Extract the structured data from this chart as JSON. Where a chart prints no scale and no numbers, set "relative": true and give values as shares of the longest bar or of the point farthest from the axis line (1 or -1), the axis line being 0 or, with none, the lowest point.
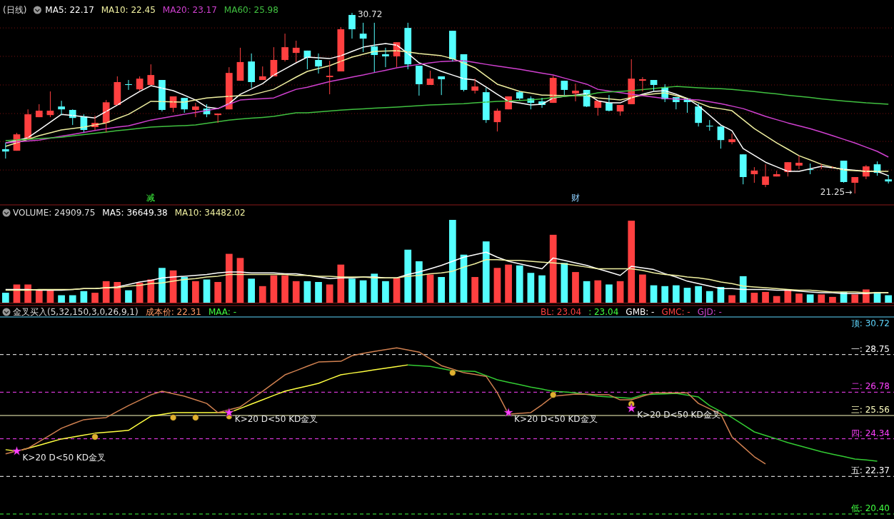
{
  "chart_data": [
    {
      "type": "candlestick",
      "title": "(日线)",
      "legend": "top left",
      "tick_labels": "x",
      "grid": "y",
      "yticks": [
        {
          "value": 29.93,
          "label": null
        },
        {
          "value": 28.44,
          "label": null
        },
        {
          "value": 26.94,
          "label": null
        },
        {
          "value": 25.44,
          "label": null
        },
        {
          "value": 23.98,
          "label": null
        },
        {
          "value": 22.48,
          "label": null
        }
      ],
      "categories": [
        null,
        null,
        null,
        null,
        null,
        null,
        null,
        null,
        null,
        null,
        null,
        null,
        null,
        "减",
        null,
        null,
        null,
        null,
        null,
        null,
        null,
        null,
        null,
        null,
        null,
        null,
        null,
        null,
        null,
        null,
        null,
        null,
        null,
        null,
        null,
        null,
        null,
        null,
        null,
        null,
        null,
        null,
        null,
        null,
        null,
        null,
        null,
        null,
        null,
        null,
        null,
        "财",
        null,
        null,
        null,
        null,
        null,
        null,
        null,
        null,
        null,
        null,
        null,
        null,
        null,
        null,
        null,
        null,
        null,
        null,
        null,
        null,
        null,
        null,
        null,
        null,
        null,
        null,
        null,
        null
      ],
      "ohlc": [
        [
          23.57,
          23.9,
          23.08,
          23.45
        ],
        [
          23.49,
          24.43,
          23.49,
          24.35
        ],
        [
          24.09,
          25.66,
          24.09,
          25.4
        ],
        [
          25.25,
          25.93,
          25.25,
          25.59
        ],
        [
          25.36,
          26.6,
          25.25,
          25.59
        ],
        [
          25.81,
          26.11,
          25.36,
          25.66
        ],
        [
          25.63,
          25.66,
          24.84,
          25.21
        ],
        [
          25.29,
          25.4,
          24.46,
          24.58
        ],
        [
          24.73,
          25.33,
          24.58,
          24.95
        ],
        [
          24.95,
          26.15,
          24.46,
          26.03
        ],
        [
          25.89,
          27.39,
          25.89,
          27.09
        ],
        [
          26.98,
          27.2,
          26.68,
          26.94
        ],
        [
          26.71,
          27.39,
          26.64,
          27.27
        ],
        [
          26.94,
          28.02,
          26.94,
          27.46
        ],
        [
          27.2,
          27.2,
          25.55,
          25.63
        ],
        [
          25.74,
          26.34,
          25.51,
          26.34
        ],
        [
          26.26,
          26.26,
          25.48,
          25.66
        ],
        [
          25.63,
          26.0,
          25.25,
          25.81
        ],
        [
          25.7,
          25.93,
          25.25,
          25.4
        ],
        [
          25.36,
          25.44,
          24.95,
          25.44
        ],
        [
          25.66,
          27.87,
          25.66,
          27.57
        ],
        [
          27.16,
          28.89,
          27.16,
          28.14
        ],
        [
          28.17,
          28.59,
          26.79,
          27.09
        ],
        [
          27.2,
          27.91,
          27.2,
          27.39
        ],
        [
          27.39,
          28.92,
          27.39,
          28.25
        ],
        [
          28.25,
          29.63,
          28.17,
          28.92
        ],
        [
          28.62,
          29.26,
          28.14,
          28.89
        ],
        [
          28.74,
          28.74,
          27.76,
          28.36
        ],
        [
          28.25,
          28.59,
          27.54,
          27.91
        ],
        [
          27.35,
          28.21,
          26.45,
          27.42
        ],
        [
          27.65,
          29.97,
          27.65,
          29.86
        ],
        [
          30.61,
          30.72,
          29.37,
          29.86
        ],
        [
          29.63,
          30.2,
          28.66,
          29.37
        ],
        [
          28.96,
          30.2,
          27.61,
          28.51
        ],
        [
          28.55,
          28.89,
          27.87,
          28.44
        ],
        [
          28.44,
          29.18,
          27.87,
          29.18
        ],
        [
          29.93,
          30.2,
          27.76,
          28.02
        ],
        [
          27.95,
          27.95,
          26.38,
          26.98
        ],
        [
          26.94,
          27.69,
          26.94,
          27.27
        ],
        [
          27.39,
          27.39,
          26.41,
          27.24
        ],
        [
          29.78,
          29.78,
          28.17,
          28.29
        ],
        [
          28.55,
          28.55,
          26.6,
          26.68
        ],
        [
          26.64,
          27.27,
          26.49,
          26.86
        ],
        [
          26.56,
          26.79,
          24.95,
          25.1
        ],
        [
          24.99,
          25.7,
          24.5,
          25.59
        ],
        [
          25.66,
          26.34,
          25.66,
          26.34
        ],
        [
          26.56,
          26.64,
          26.15,
          26.23
        ],
        [
          26.23,
          26.34,
          25.66,
          26.0
        ],
        [
          26.08,
          26.26,
          25.74,
          25.89
        ],
        [
          26.0,
          27.42,
          26.0,
          27.31
        ],
        [
          27.16,
          27.16,
          26.41,
          26.68
        ],
        [
          26.49,
          27.01,
          26.08,
          26.64
        ],
        [
          26.68,
          26.68,
          25.78,
          25.81
        ],
        [
          25.74,
          26.11,
          25.33,
          26.11
        ],
        [
          26.0,
          26.41,
          25.55,
          25.59
        ],
        [
          25.55,
          25.89,
          25.33,
          25.89
        ],
        [
          25.93,
          28.29,
          25.93,
          27.27
        ],
        [
          27.16,
          27.35,
          26.6,
          27.24
        ],
        [
          27.2,
          27.2,
          26.64,
          26.94
        ],
        [
          26.83,
          26.98,
          26.04,
          26.19
        ],
        [
          26.3,
          26.3,
          25.66,
          26.04
        ],
        [
          26.23,
          26.23,
          25.48,
          26.04
        ],
        [
          25.81,
          25.96,
          24.76,
          24.95
        ],
        [
          24.8,
          25.1,
          24.54,
          24.76
        ],
        [
          24.76,
          24.8,
          23.6,
          24.05
        ],
        [
          23.94,
          24.39,
          23.83,
          24.09
        ],
        [
          23.3,
          23.3,
          21.73,
          22.11
        ],
        [
          22.26,
          22.63,
          21.81,
          22.45
        ],
        [
          21.7,
          22.78,
          21.58,
          22.14
        ],
        [
          22.14,
          22.44,
          22.14,
          22.26
        ],
        [
          22.37,
          22.89,
          22.14,
          22.89
        ],
        [
          22.71,
          23.23,
          22.52,
          22.86
        ],
        [
          22.52,
          22.82,
          22.26,
          22.48
        ],
        [
          22.63,
          22.78,
          22.52,
          22.67
        ],
        [
          22.6,
          22.67,
          22.56,
          22.63
        ],
        [
          22.97,
          22.97,
          21.81,
          21.85
        ],
        [
          21.81,
          22.11,
          21.25,
          22.11
        ],
        [
          22.14,
          22.74,
          22.0,
          22.67
        ],
        [
          22.78,
          22.93,
          22.18,
          22.33
        ],
        [
          21.99,
          22.22,
          21.77,
          21.88
        ]
      ],
      "series": [
        {
          "name": "MA5: 22.17",
          "color": "#ffffff",
          "type": "line",
          "values": [
            23.9,
            24.03,
            24.17,
            24.58,
            24.99,
            25.4,
            25.34,
            25.27,
            25.21,
            25.55,
            25.89,
            26.25,
            26.6,
            26.9,
            26.77,
            26.64,
            26.4,
            26.15,
            25.78,
            25.7,
            25.96,
            26.45,
            26.73,
            27.01,
            27.46,
            27.78,
            28.1,
            28.4,
            28.36,
            28.32,
            28.47,
            28.7,
            28.92,
            29.03,
            29.11,
            29.03,
            28.59,
            28.1,
            27.88,
            27.65,
            27.46,
            27.27,
            27.2,
            26.83,
            26.45,
            26.08,
            25.99,
            25.89,
            25.93,
            26.26,
            26.34,
            26.41,
            26.49,
            26.11,
            26.0,
            26.0,
            26.26,
            26.45,
            26.6,
            26.64,
            26.45,
            26.23,
            25.85,
            25.35,
            24.84,
            24.54,
            23.6,
            23.25,
            22.89,
            22.65,
            22.41,
            22.41,
            22.54,
            22.67,
            22.6,
            22.52,
            22.47,
            22.41,
            22.41,
            22.18
          ]
        },
        {
          "name": "MA10: 22.45",
          "color": "#f0f0a0",
          "type": "line",
          "values": [
            23.72,
            23.91,
            24.09,
            24.28,
            24.43,
            24.58,
            24.66,
            24.73,
            24.84,
            24.95,
            25.18,
            25.4,
            25.74,
            26.08,
            26.07,
            26.05,
            26.04,
            26.15,
            26.26,
            26.3,
            26.34,
            26.38,
            26.41,
            26.56,
            26.71,
            27.03,
            27.35,
            27.65,
            27.8,
            27.95,
            28.18,
            28.4,
            28.55,
            28.7,
            28.72,
            28.74,
            28.67,
            28.59,
            28.53,
            28.47,
            28.32,
            28.08,
            27.84,
            27.41,
            26.98,
            26.79,
            26.6,
            26.51,
            26.41,
            26.4,
            26.38,
            26.38,
            26.38,
            26.26,
            26.21,
            26.15,
            26.28,
            26.41,
            26.47,
            26.53,
            26.38,
            26.23,
            26.01,
            25.78,
            25.69,
            25.59,
            25.12,
            24.65,
            24.28,
            23.9,
            23.57,
            23.23,
            23.01,
            22.78,
            22.63,
            22.48,
            22.45,
            22.41,
            22.41,
            22.41
          ]
        },
        {
          "name": "MA20: 23.17",
          "color": "#d040d0",
          "type": "line",
          "values": [
            23.9,
            23.95,
            24.0,
            24.05,
            24.15,
            24.25,
            24.35,
            24.45,
            24.55,
            24.65,
            24.73,
            24.8,
            24.95,
            25.1,
            25.2,
            25.3,
            25.4,
            25.5,
            25.6,
            25.7,
            25.93,
            26.15,
            26.19,
            26.22,
            26.26,
            26.49,
            26.71,
            26.82,
            26.97,
            27.12,
            27.23,
            27.35,
            27.46,
            27.59,
            27.71,
            27.84,
            27.93,
            28.02,
            28.1,
            28.17,
            28.19,
            28.21,
            28.12,
            28.02,
            27.93,
            27.85,
            27.76,
            27.66,
            27.56,
            27.46,
            27.3,
            27.14,
            26.98,
            26.71,
            26.62,
            26.54,
            26.45,
            26.38,
            26.3,
            26.23,
            26.2,
            26.18,
            26.15,
            26.06,
            25.96,
            25.83,
            25.7,
            25.5,
            25.29,
            25.12,
            24.95,
            24.8,
            24.65,
            24.47,
            24.28,
            24.09,
            23.9,
            23.68,
            23.46,
            23.16
          ]
        },
        {
          "name": "MA60: 25.98",
          "color": "#40c040",
          "type": "line",
          "values": [
            24.02,
            24.06,
            24.09,
            24.13,
            24.16,
            24.2,
            24.27,
            24.34,
            24.4,
            24.47,
            24.54,
            24.6,
            24.67,
            24.73,
            24.76,
            24.79,
            24.81,
            24.84,
            24.93,
            25.01,
            25.1,
            25.15,
            25.2,
            25.24,
            25.29,
            25.39,
            25.48,
            25.48,
            25.53,
            25.57,
            25.62,
            25.66,
            25.69,
            25.72,
            25.75,
            25.78,
            25.82,
            25.85,
            25.89,
            25.91,
            25.94,
            25.96,
            26.0,
            26.04,
            26.08,
            26.1,
            26.13,
            26.15,
            26.21,
            26.28,
            26.34,
            26.38,
            26.41,
            26.53,
            26.57,
            26.6,
            26.64,
            26.7,
            26.75,
            26.81,
            26.86,
            26.83,
            26.79,
            26.76,
            26.74,
            26.71,
            26.65,
            26.59,
            26.53,
            26.47,
            26.4,
            26.34,
            26.28,
            26.21,
            26.15,
            26.1,
            26.05,
            26.0,
            25.97,
            25.93
          ]
        }
      ],
      "annotations": [
        "30.72",
        "21.25→"
      ]
    },
    {
      "type": "bar",
      "title": "VOLUME: 24909.75",
      "relative": true,
      "legend": "top left",
      "categories": [
        null,
        null,
        null,
        null,
        null,
        null,
        null,
        null,
        null,
        null,
        null,
        null,
        null,
        null,
        null,
        null,
        null,
        null,
        null,
        null,
        null,
        null,
        null,
        null,
        null,
        null,
        null,
        null,
        null,
        null,
        null,
        null,
        null,
        null,
        null,
        null,
        null,
        null,
        null,
        null,
        null,
        null,
        null,
        null,
        null,
        null,
        null,
        null,
        null,
        null,
        null,
        null,
        null,
        null,
        null,
        null,
        null,
        null,
        null,
        null,
        null,
        null,
        null,
        null,
        null,
        null,
        null,
        null,
        null,
        null,
        null,
        null,
        null,
        null,
        null,
        null,
        null,
        null,
        null,
        null
      ],
      "series": [
        {
          "type": "bar",
          "values": [
            0.12,
            0.22,
            0.22,
            0.16,
            0.16,
            0.09,
            0.09,
            0.14,
            0.12,
            0.26,
            0.25,
            0.15,
            0.24,
            0.28,
            0.42,
            0.39,
            0.31,
            0.26,
            0.28,
            0.25,
            0.59,
            0.54,
            0.29,
            0.2,
            0.33,
            0.33,
            0.26,
            0.26,
            0.25,
            0.22,
            0.46,
            0.29,
            0.27,
            0.35,
            0.26,
            0.3,
            0.64,
            0.5,
            0.34,
            0.31,
            1,
            0.58,
            0.31,
            0.74,
            0.42,
            0.46,
            0.45,
            0.36,
            0.33,
            0.82,
            0.48,
            0.37,
            0.26,
            0.27,
            0.22,
            0.26,
            0.99,
            0.34,
            0.21,
            0.2,
            0.21,
            0.18,
            0.2,
            0.14,
            0.19,
            0.09,
            0.32,
            0.12,
            0.13,
            0.08,
            0.16,
            0.11,
            0.1,
            0.1,
            0.07,
            0.13,
            0.1,
            0.16,
            0.13,
            0.09
          ],
          "colors": [
            "#54ffff",
            "#ff4040",
            "#ff4040",
            "#ff4040",
            "#ff4040",
            "#54ffff",
            "#54ffff",
            "#54ffff",
            "#ff4040",
            "#ff4040",
            "#ff4040",
            "#54ffff",
            "#ff4040",
            "#ff4040",
            "#54ffff",
            "#ff4040",
            "#54ffff",
            "#ff4040",
            "#54ffff",
            "#ff4040",
            "#ff4040",
            "#ff4040",
            "#54ffff",
            "#ff4040",
            "#ff4040",
            "#ff4040",
            "#ff4040",
            "#54ffff",
            "#54ffff",
            "#ff4040",
            "#ff4040",
            "#54ffff",
            "#54ffff",
            "#54ffff",
            "#54ffff",
            "#ff4040",
            "#54ffff",
            "#54ffff",
            "#ff4040",
            "#54ffff",
            "#54ffff",
            "#54ffff",
            "#ff4040",
            "#54ffff",
            "#ff4040",
            "#ff4040",
            "#54ffff",
            "#54ffff",
            "#54ffff",
            "#ff4040",
            "#54ffff",
            "#ff4040",
            "#54ffff",
            "#ff4040",
            "#54ffff",
            "#ff4040",
            "#ff4040",
            "#ff4040",
            "#54ffff",
            "#54ffff",
            "#54ffff",
            "#54ffff",
            "#54ffff",
            "#54ffff",
            "#54ffff",
            "#ff4040",
            "#54ffff",
            "#ff4040",
            "#ff4040",
            "#ff4040",
            "#ff4040",
            "#ff4040",
            "#54ffff",
            "#ff4040",
            "#ff4040",
            "#54ffff",
            "#ff4040",
            "#ff4040",
            "#54ffff",
            "#54ffff"
          ]
        },
        {
          "name": "MA5: 36649.38",
          "color": "#ffffff",
          "type": "line",
          "values": [
            0.16,
            0.16,
            0.16,
            0.15,
            0.15,
            0.15,
            0.16,
            0.17,
            0.17,
            0.18,
            0.19,
            0.22,
            0.25,
            0.27,
            0.3,
            0.31,
            0.32,
            0.33,
            0.34,
            0.36,
            0.37,
            0.37,
            0.36,
            0.36,
            0.36,
            0.35,
            0.35,
            0.33,
            0.31,
            0.29,
            0.3,
            0.3,
            0.31,
            0.31,
            0.3,
            0.3,
            0.34,
            0.37,
            0.41,
            0.45,
            0.5,
            0.55,
            0.58,
            0.61,
            0.55,
            0.5,
            0.47,
            0.44,
            0.41,
            0.54,
            0.51,
            0.48,
            0.45,
            0.41,
            0.37,
            0.33,
            0.44,
            0.42,
            0.4,
            0.35,
            0.31,
            0.26,
            0.23,
            0.2,
            0.17,
            0.17,
            0.16,
            0.16,
            0.16,
            0.15,
            0.15,
            0.14,
            0.13,
            0.12,
            0.12,
            0.11,
            0.11,
            0.11,
            0.12,
            0.12
          ]
        },
        {
          "name": "MA10: 34482.02",
          "color": "#f0f0a0",
          "type": "line",
          "values": [
            0.15,
            0.15,
            0.15,
            0.16,
            0.16,
            0.16,
            0.16,
            0.17,
            0.17,
            0.18,
            0.18,
            0.2,
            0.21,
            0.23,
            0.24,
            0.26,
            0.28,
            0.29,
            0.31,
            0.32,
            0.34,
            0.34,
            0.34,
            0.34,
            0.34,
            0.34,
            0.33,
            0.33,
            0.32,
            0.32,
            0.31,
            0.31,
            0.31,
            0.3,
            0.3,
            0.3,
            0.32,
            0.33,
            0.35,
            0.36,
            0.38,
            0.43,
            0.47,
            0.52,
            0.52,
            0.51,
            0.51,
            0.5,
            0.49,
            0.48,
            0.47,
            0.45,
            0.43,
            0.41,
            0.41,
            0.41,
            0.41,
            0.39,
            0.36,
            0.34,
            0.33,
            0.31,
            0.3,
            0.28,
            0.25,
            0.23,
            0.2,
            0.19,
            0.18,
            0.17,
            0.16,
            0.15,
            0.15,
            0.14,
            0.13,
            0.13,
            0.13,
            0.12,
            0.12,
            0.12
          ]
        }
      ]
    },
    {
      "type": "line",
      "title": "金叉买入(5,32,150,3,0,26,9,1)",
      "ylim": [
        20.4,
        30.72
      ],
      "categories": [
        null,
        null,
        null,
        null,
        null,
        null,
        null,
        null,
        null,
        null,
        null,
        null,
        null,
        null,
        null,
        null,
        null,
        null,
        null,
        null,
        null,
        null,
        null,
        null,
        null,
        null,
        null,
        null,
        null,
        null,
        null,
        null,
        null,
        null,
        null,
        null,
        null,
        null,
        null,
        null,
        null,
        null,
        null,
        null,
        null,
        null,
        null,
        null,
        null,
        null,
        null,
        null,
        null,
        null,
        null,
        null,
        null,
        null,
        null,
        null,
        null,
        null,
        null,
        null,
        null,
        null,
        null,
        null,
        null,
        null,
        null,
        null,
        null,
        null,
        null,
        null,
        null,
        null,
        null,
        null
      ],
      "ref_lines": [
        {
          "axis": "y",
          "value": 30.72,
          "label": "顶: 30.72",
          "color": "#5fd7ff",
          "line_style": "solid"
        },
        {
          "axis": "y",
          "value": 28.75,
          "label": "一: 28.75",
          "color": "#ffffff",
          "line_style": "dashed"
        },
        {
          "axis": "y",
          "value": 26.78,
          "label": "二: 26.78",
          "color": "#ff40ff",
          "line_style": "dashed"
        },
        {
          "axis": "y",
          "value": 25.56,
          "label": "三: 25.56",
          "color": "#ffffc0",
          "line_style": "solid"
        },
        {
          "axis": "y",
          "value": 24.34,
          "label": "四: 24.34",
          "color": "#ff40ff",
          "line_style": "dashed"
        },
        {
          "axis": "y",
          "value": 22.37,
          "label": "五: 22.37",
          "color": "#ffffff",
          "line_style": "dashed"
        },
        {
          "axis": "y",
          "value": 20.4,
          "label": "低: 20.40",
          "color": "#40ff40",
          "line_style": "dashed"
        }
      ],
      "series": [
        {
          "color": "#ffff40",
          "type": "line",
          "values": [
            23.77,
            23.69,
            23.84,
            24.0,
            24.17,
            24.33,
            24.43,
            24.53,
            24.63,
            24.68,
            24.73,
            24.78,
            25.15,
            25.52,
            25.62,
            25.71,
            25.71,
            25.71,
            25.71,
            25.71,
            25.71,
            25.93,
            26.16,
            26.38,
            26.61,
            26.83,
            26.97,
            27.1,
            27.24,
            27.47,
            27.69,
            27.78,
            27.86,
            27.95,
            28.04,
            28.12,
            28.21,
            null,
            null,
            null,
            null,
            null,
            null,
            null,
            null,
            null,
            null,
            null,
            null,
            null,
            null,
            null,
            null,
            null,
            null,
            null,
            null,
            null,
            null,
            null,
            null,
            null,
            null,
            null,
            null,
            null,
            null,
            null,
            null,
            null,
            null,
            null,
            null,
            null,
            null,
            null,
            null,
            null,
            null,
            null
          ]
        },
        {
          "color": "#33cc33",
          "type": "line",
          "values": [
            null,
            null,
            null,
            null,
            null,
            null,
            null,
            null,
            null,
            null,
            null,
            null,
            null,
            null,
            null,
            null,
            null,
            null,
            null,
            null,
            null,
            null,
            null,
            null,
            null,
            null,
            null,
            null,
            null,
            null,
            null,
            null,
            null,
            null,
            null,
            null,
            28.21,
            28.17,
            28.13,
            28.02,
            27.91,
            27.89,
            27.87,
            27.65,
            27.43,
            27.3,
            27.18,
            27.05,
            26.94,
            26.83,
            26.79,
            26.75,
            26.66,
            26.57,
            26.53,
            26.5,
            26.46,
            26.64,
            26.67,
            26.69,
            26.72,
            26.63,
            26.53,
            26.08,
            25.77,
            25.45,
            25.08,
            24.7,
            24.51,
            24.33,
            24.14,
            23.98,
            23.82,
            23.66,
            23.53,
            23.41,
            23.28,
            23.23,
            23.17,
            null
          ]
        },
        {
          "color": "#d08050",
          "type": "line",
          "values": [
            23.55,
            23.7,
            23.84,
            24.19,
            24.54,
            24.89,
            25.12,
            25.34,
            25.4,
            25.45,
            25.77,
            26.08,
            26.36,
            26.64,
            26.83,
            26.7,
            26.57,
            26.38,
            26.19,
            25.71,
            25.86,
            26.01,
            26.42,
            26.83,
            27.26,
            27.69,
            27.91,
            28.14,
            28.36,
            28.38,
            28.4,
            28.69,
            28.81,
            28.92,
            29.01,
            29.1,
            28.99,
            28.88,
            28.53,
            28.17,
            27.99,
            27.8,
            27.71,
            27.61,
            26.75,
            25.63,
            25.67,
            25.71,
            26.12,
            26.57,
            26.63,
            26.68,
            26.67,
            26.65,
            26.64,
            26.38,
            26.38,
            26.57,
            26.75,
            26.75,
            26.75,
            26.75,
            26.19,
            25.91,
            25.63,
            24.44,
            23.92,
            23.4,
            23.02,
            null,
            null,
            null,
            null,
            null,
            null,
            null,
            null,
            null,
            null,
            null
          ]
        },
        {
          "color": "#e0b030",
          "type": "scatter",
          "marker": "circle",
          "values": [
            null,
            null,
            null,
            null,
            null,
            null,
            null,
            null,
            24.44,
            null,
            null,
            null,
            null,
            null,
            null,
            25.45,
            null,
            25.45,
            null,
            null,
            25.52,
            null,
            null,
            null,
            null,
            null,
            null,
            null,
            null,
            null,
            null,
            null,
            null,
            null,
            null,
            null,
            null,
            null,
            null,
            null,
            27.8,
            null,
            null,
            null,
            null,
            null,
            null,
            null,
            null,
            26.64,
            null,
            null,
            null,
            null,
            null,
            null,
            26.16,
            null,
            null,
            null,
            null,
            null,
            null,
            null,
            null,
            null,
            null,
            null,
            null,
            null,
            null,
            null,
            null,
            null,
            null,
            null,
            null,
            null,
            null,
            null
          ]
        },
        {
          "color": "#ff40ff",
          "type": "scatter",
          "marker": "star",
          "values": [
            null,
            23.69,
            null,
            null,
            null,
            null,
            null,
            null,
            null,
            null,
            null,
            null,
            null,
            null,
            null,
            null,
            null,
            null,
            null,
            null,
            25.71,
            null,
            null,
            null,
            null,
            null,
            null,
            null,
            null,
            null,
            null,
            null,
            null,
            null,
            null,
            null,
            null,
            null,
            null,
            null,
            null,
            null,
            null,
            null,
            null,
            25.71,
            null,
            null,
            null,
            null,
            null,
            null,
            null,
            null,
            null,
            null,
            25.93,
            null,
            null,
            null,
            null,
            null,
            null,
            null,
            null,
            null,
            null,
            null,
            null,
            null,
            null,
            null,
            null,
            null,
            null,
            null,
            null,
            null,
            null,
            null
          ],
          "value_labels": [
            null,
            "K>20 D<50 KD金叉",
            null,
            null,
            null,
            null,
            null,
            null,
            null,
            null,
            null,
            null,
            null,
            null,
            null,
            null,
            null,
            null,
            null,
            null,
            "K>20 D<50 KD金叉",
            null,
            null,
            null,
            null,
            null,
            null,
            null,
            null,
            null,
            null,
            null,
            null,
            null,
            null,
            null,
            null,
            null,
            null,
            null,
            null,
            null,
            null,
            null,
            null,
            "K>20 D<50 KD金叉",
            null,
            null,
            null,
            null,
            null,
            null,
            null,
            null,
            null,
            null,
            "K>20 D<50 KD金叉",
            null,
            null,
            null,
            null,
            null,
            null,
            null,
            null,
            null,
            null,
            null,
            null,
            null,
            null,
            null,
            null,
            null,
            null,
            null,
            null,
            null,
            null,
            null
          ]
        }
      ],
      "annotations": [
        "成本价: 22.31",
        "MAA: -",
        "BL: 23.04",
        ": 23.04",
        "GMB: -",
        "GMC: -",
        "GJD: -"
      ]
    }
  ]
}
